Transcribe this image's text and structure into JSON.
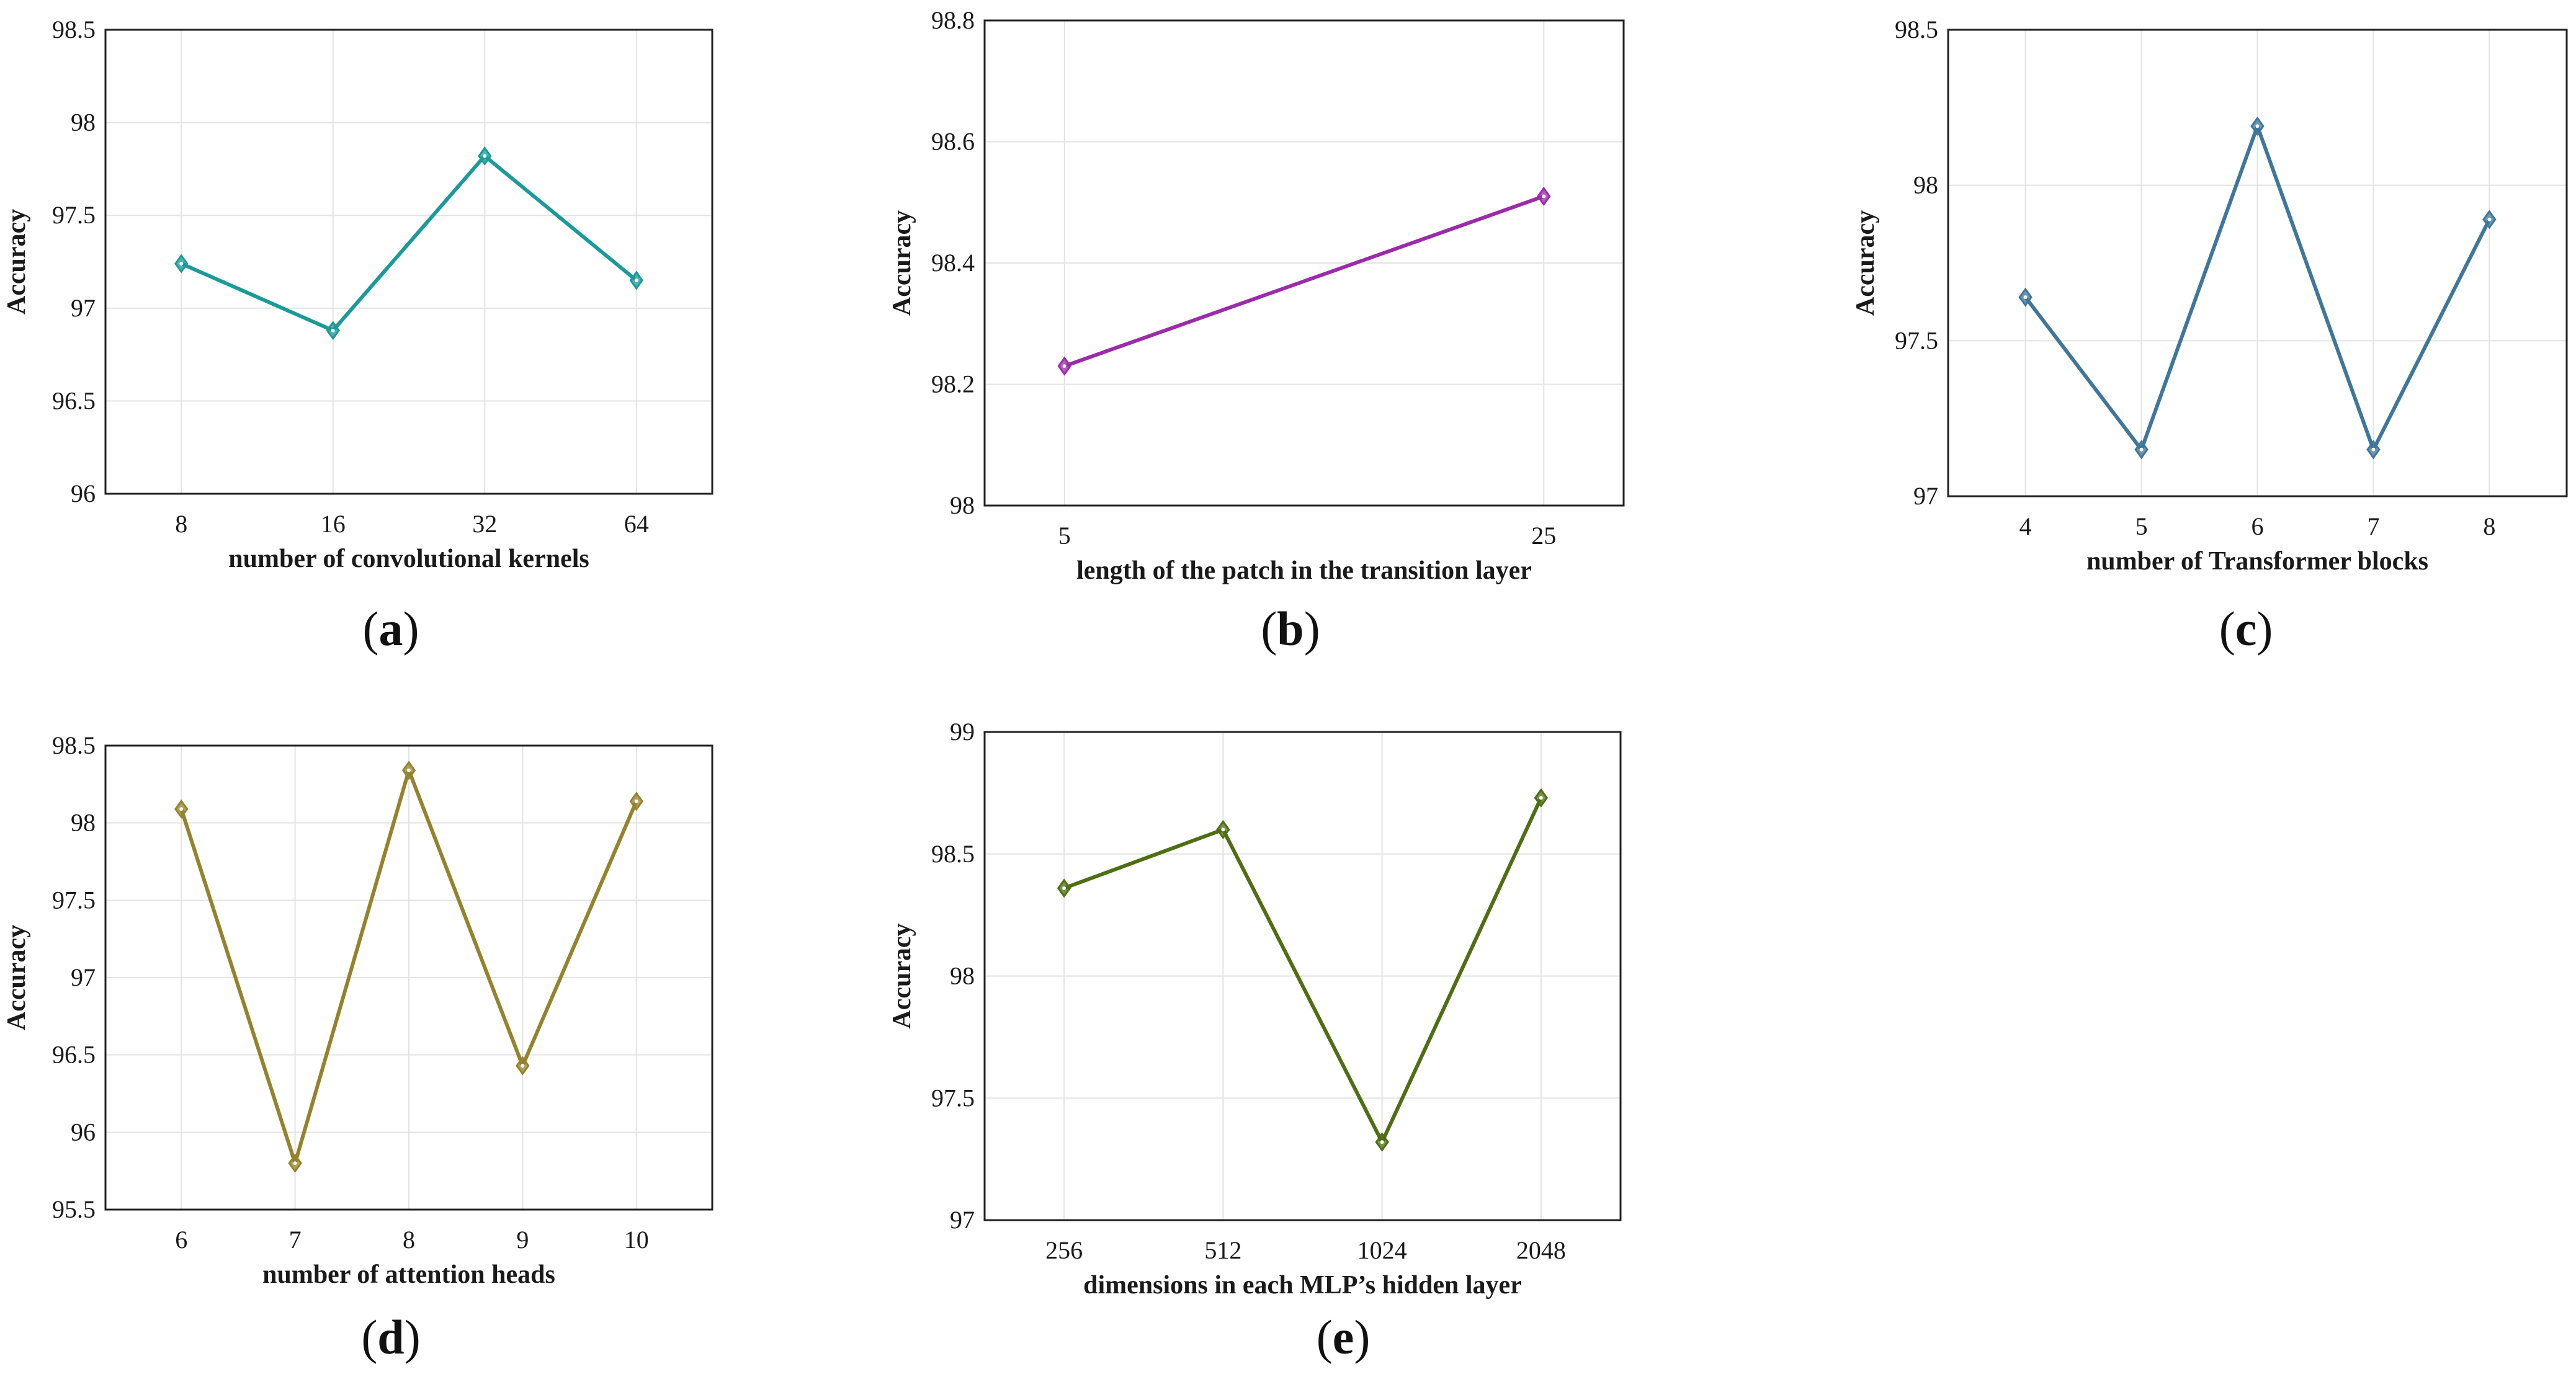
{
  "chart_data": [
    {
      "type": "line",
      "panel": "a",
      "caption_letter": "a",
      "title": "",
      "xlabel": "number of convolutional kernels",
      "ylabel": "Accuracy",
      "categories": [
        "8",
        "16",
        "32",
        "64"
      ],
      "values": [
        97.24,
        96.88,
        97.82,
        97.15
      ],
      "ylim": [
        96,
        98.5
      ],
      "yticks": [
        96,
        96.5,
        97,
        97.5,
        98,
        98.5
      ],
      "yticklabels": [
        "96",
        "96.5",
        "97",
        "97.5",
        "98",
        "98.5"
      ],
      "color": "#1a9a98",
      "grid": true
    },
    {
      "type": "line",
      "panel": "b",
      "caption_letter": "b",
      "title": "",
      "xlabel": "length of the patch in the transition layer",
      "ylabel": "Accuracy",
      "categories": [
        "5",
        "25"
      ],
      "values": [
        98.23,
        98.51
      ],
      "ylim": [
        98,
        98.8
      ],
      "yticks": [
        98,
        98.2,
        98.4,
        98.6,
        98.8
      ],
      "yticklabels": [
        "98",
        "98.2",
        "98.4",
        "98.6",
        "98.8"
      ],
      "color": "#9b2bab",
      "grid": true
    },
    {
      "type": "line",
      "panel": "c",
      "caption_letter": "c",
      "title": "",
      "xlabel": "number of Transformer blocks",
      "ylabel": "Accuracy",
      "categories": [
        "4",
        "5",
        "6",
        "7",
        "8"
      ],
      "values": [
        97.64,
        97.15,
        98.19,
        97.15,
        97.89
      ],
      "ylim": [
        97,
        98.5
      ],
      "yticks": [
        97,
        97.5,
        98,
        98.5
      ],
      "yticklabels": [
        "97",
        "97.5",
        "98",
        "98.5"
      ],
      "color": "#40769a",
      "grid": true
    },
    {
      "type": "line",
      "panel": "d",
      "caption_letter": "d",
      "title": "",
      "xlabel": "number of attention heads",
      "ylabel": "Accuracy",
      "categories": [
        "6",
        "7",
        "8",
        "9",
        "10"
      ],
      "values": [
        98.09,
        95.8,
        98.34,
        96.43,
        98.14
      ],
      "ylim": [
        95.5,
        98.5
      ],
      "yticks": [
        95.5,
        96,
        96.5,
        97,
        97.5,
        98,
        98.5
      ],
      "yticklabels": [
        "95.5",
        "96",
        "96.5",
        "97",
        "97.5",
        "98",
        "98.5"
      ],
      "color": "#94832c",
      "grid": true
    },
    {
      "type": "line",
      "panel": "e",
      "caption_letter": "e",
      "title": "",
      "xlabel": "dimensions in each MLP’s hidden layer",
      "ylabel": "Accuracy",
      "categories": [
        "256",
        "512",
        "1024",
        "2048"
      ],
      "values": [
        98.36,
        98.6,
        97.32,
        98.73
      ],
      "ylim": [
        97,
        99
      ],
      "yticks": [
        97,
        97.5,
        98,
        98.5,
        99
      ],
      "yticklabels": [
        "97",
        "97.5",
        "98",
        "98.5",
        "99"
      ],
      "color": "#4f6e14",
      "grid": true
    }
  ]
}
